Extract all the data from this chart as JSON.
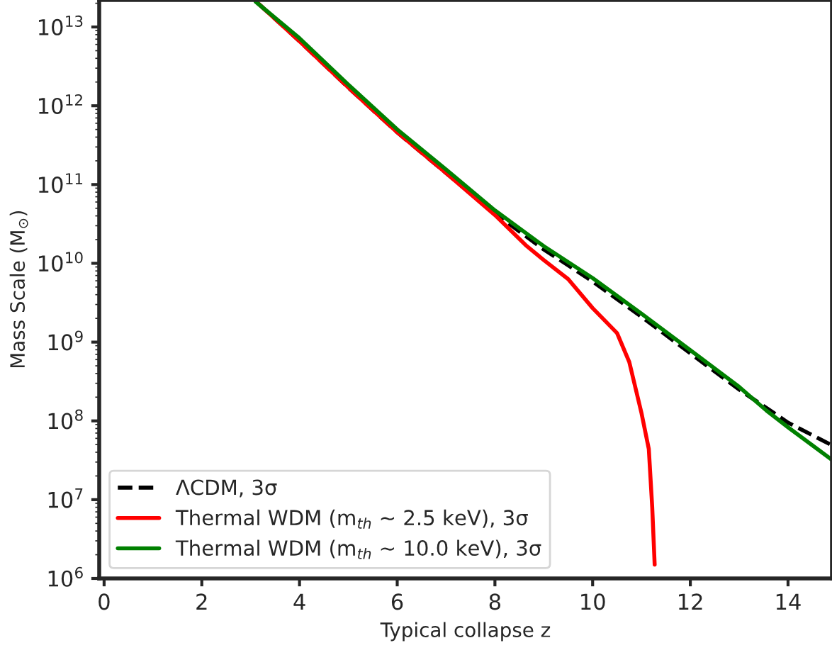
{
  "chart_data": {
    "type": "line",
    "xlabel": "Typical collapse z",
    "ylabel": "Mass Scale (M$_{⊙}$)",
    "log": "y",
    "xlim": [
      -0.1,
      14.9
    ],
    "ylim": [
      1000000.0,
      22000000000000.0
    ],
    "xticks": [
      0,
      2,
      4,
      6,
      8,
      10,
      12,
      14
    ],
    "yticks": [
      {
        "value": 1000000.0,
        "label": "10$^{6}$"
      },
      {
        "value": 10000000.0,
        "label": "10$^{7}$"
      },
      {
        "value": 100000000.0,
        "label": "10$^{8}$"
      },
      {
        "value": 1000000000.0,
        "label": "10$^{9}$"
      },
      {
        "value": 10000000000.0,
        "label": "10$^{10}$"
      },
      {
        "value": 100000000000.0,
        "label": "10$^{11}$"
      },
      {
        "value": 1000000000000.0,
        "label": "10$^{12}$"
      },
      {
        "value": 10000000000000.0,
        "label": "10$^{13}$"
      }
    ],
    "grid": false,
    "legend": "bottom left",
    "marker": "none",
    "series": [
      {
        "name": "ΛCDM, 3σ",
        "color": "#000000",
        "line_style": "dashed",
        "x": [
          3.15,
          4,
          5,
          6,
          7,
          8,
          9,
          10,
          11,
          12,
          13,
          14,
          14.9
        ],
        "values": [
          20000000000000.0,
          6600000000000.0,
          1700000000000.0,
          460000000000.0,
          140000000000.0,
          43000000000.0,
          15000000000.0,
          5900000000.0,
          2100000000.0,
          720000000.0,
          250000000.0,
          95000000.0,
          49000000.0
        ]
      },
      {
        "name": "Thermal WDM (m$_{th}$ ~ 2.5 keV), 3σ",
        "color": "#ff0000",
        "line_style": "solid",
        "x": [
          3.15,
          4,
          5,
          6,
          7,
          8,
          8.63,
          9,
          9.5,
          10,
          10.5,
          10.75,
          11,
          11.15,
          11.22,
          11.27
        ],
        "values": [
          20000000000000.0,
          6600000000000.0,
          1700000000000.0,
          460000000000.0,
          140000000000.0,
          41000000000.0,
          17000000000.0,
          11000000000.0,
          6300000000.0,
          2700000000.0,
          1300000000.0,
          560000000.0,
          126000000.0,
          44000000.0,
          8000000.0,
          1500000.0
        ]
      },
      {
        "name": "Thermal WDM (m$_{th}$ ~ 10.0 keV), 3σ",
        "color": "#008000",
        "line_style": "solid",
        "x": [
          3.1,
          4,
          5,
          6,
          7,
          8,
          9,
          10,
          11,
          12,
          13,
          13.56,
          14,
          14.9
        ],
        "values": [
          21000000000000.0,
          7200000000000.0,
          1850000000000.0,
          500000000000.0,
          155000000000.0,
          47000000000.0,
          16500000000.0,
          6500000000.0,
          2300000000.0,
          790000000.0,
          270000000.0,
          135000000.0,
          83000000.0,
          32000000.0
        ]
      }
    ]
  }
}
